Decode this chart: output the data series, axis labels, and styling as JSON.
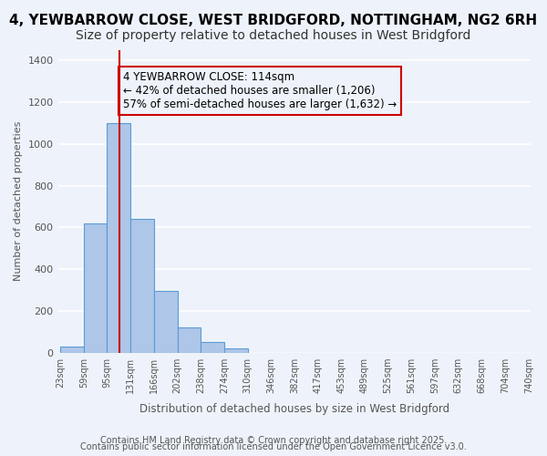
{
  "title1": "4, YEWBARROW CLOSE, WEST BRIDGFORD, NOTTINGHAM, NG2 6RH",
  "title2": "Size of property relative to detached houses in West Bridgford",
  "xlabel": "Distribution of detached houses by size in West Bridgford",
  "ylabel": "Number of detached properties",
  "bin_labels": [
    "23sqm",
    "59sqm",
    "95sqm",
    "131sqm",
    "166sqm",
    "202sqm",
    "238sqm",
    "274sqm",
    "310sqm",
    "346sqm",
    "382sqm",
    "417sqm",
    "453sqm",
    "489sqm",
    "525sqm",
    "561sqm",
    "597sqm",
    "632sqm",
    "668sqm",
    "704sqm",
    "740sqm"
  ],
  "bin_edges": [
    23,
    59,
    95,
    131,
    166,
    202,
    238,
    274,
    310,
    346,
    382,
    417,
    453,
    489,
    525,
    561,
    597,
    632,
    668,
    704,
    740
  ],
  "bar_heights": [
    30,
    620,
    1100,
    640,
    295,
    120,
    50,
    20,
    0,
    0,
    0,
    0,
    0,
    0,
    0,
    0,
    0,
    0,
    0,
    0
  ],
  "bar_color": "#aec6e8",
  "bar_edge_color": "#5b9bd5",
  "bg_color": "#eef3fb",
  "grid_color": "#ffffff",
  "vline_x": 114,
  "vline_color": "#cc0000",
  "annotation_text": "4 YEWBARROW CLOSE: 114sqm\n← 42% of detached houses are smaller (1,206)\n57% of semi-detached houses are larger (1,632) →",
  "annotation_box_edge": "#cc0000",
  "ylim": [
    0,
    1450
  ],
  "yticks": [
    0,
    200,
    400,
    600,
    800,
    1000,
    1200,
    1400
  ],
  "footer1": "Contains HM Land Registry data © Crown copyright and database right 2025.",
  "footer2": "Contains public sector information licensed under the Open Government Licence v3.0.",
  "title1_fontsize": 11,
  "title2_fontsize": 10,
  "annotation_fontsize": 8.5,
  "footer_fontsize": 7
}
